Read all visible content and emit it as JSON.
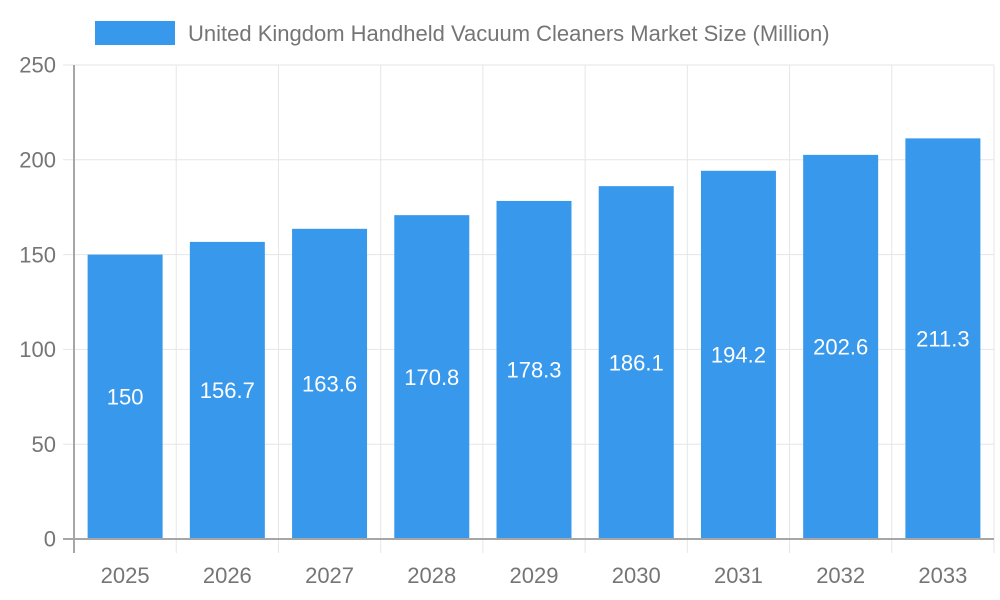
{
  "chart_data": {
    "type": "bar",
    "title": "United Kingdom Handheld Vacuum Cleaners Market Size (Million)",
    "legend": {
      "label": "United Kingdom Handheld Vacuum Cleaners Market Size (Million)",
      "position": "top-left"
    },
    "categories": [
      "2025",
      "2026",
      "2027",
      "2028",
      "2029",
      "2030",
      "2031",
      "2032",
      "2033"
    ],
    "series": [
      {
        "name": "United Kingdom Handheld Vacuum Cleaners Market Size (Million)",
        "values": [
          150,
          156.7,
          163.6,
          170.8,
          178.3,
          186.1,
          194.2,
          202.6,
          211.3
        ]
      }
    ],
    "value_labels": [
      "150",
      "156.7",
      "163.6",
      "170.8",
      "178.3",
      "186.1",
      "194.2",
      "202.6",
      "211.3"
    ],
    "xlabel": "",
    "ylabel": "",
    "ylim": [
      0,
      250
    ],
    "yticks": [
      0,
      50,
      100,
      150,
      200,
      250
    ],
    "grid": true,
    "colors": {
      "bar": "#3898EC",
      "axis_text": "#757575",
      "grid_line": "#e6e6e6",
      "axis_line": "#a6a6a6",
      "value_label_text": "#ffffff",
      "background": "#ffffff"
    }
  }
}
